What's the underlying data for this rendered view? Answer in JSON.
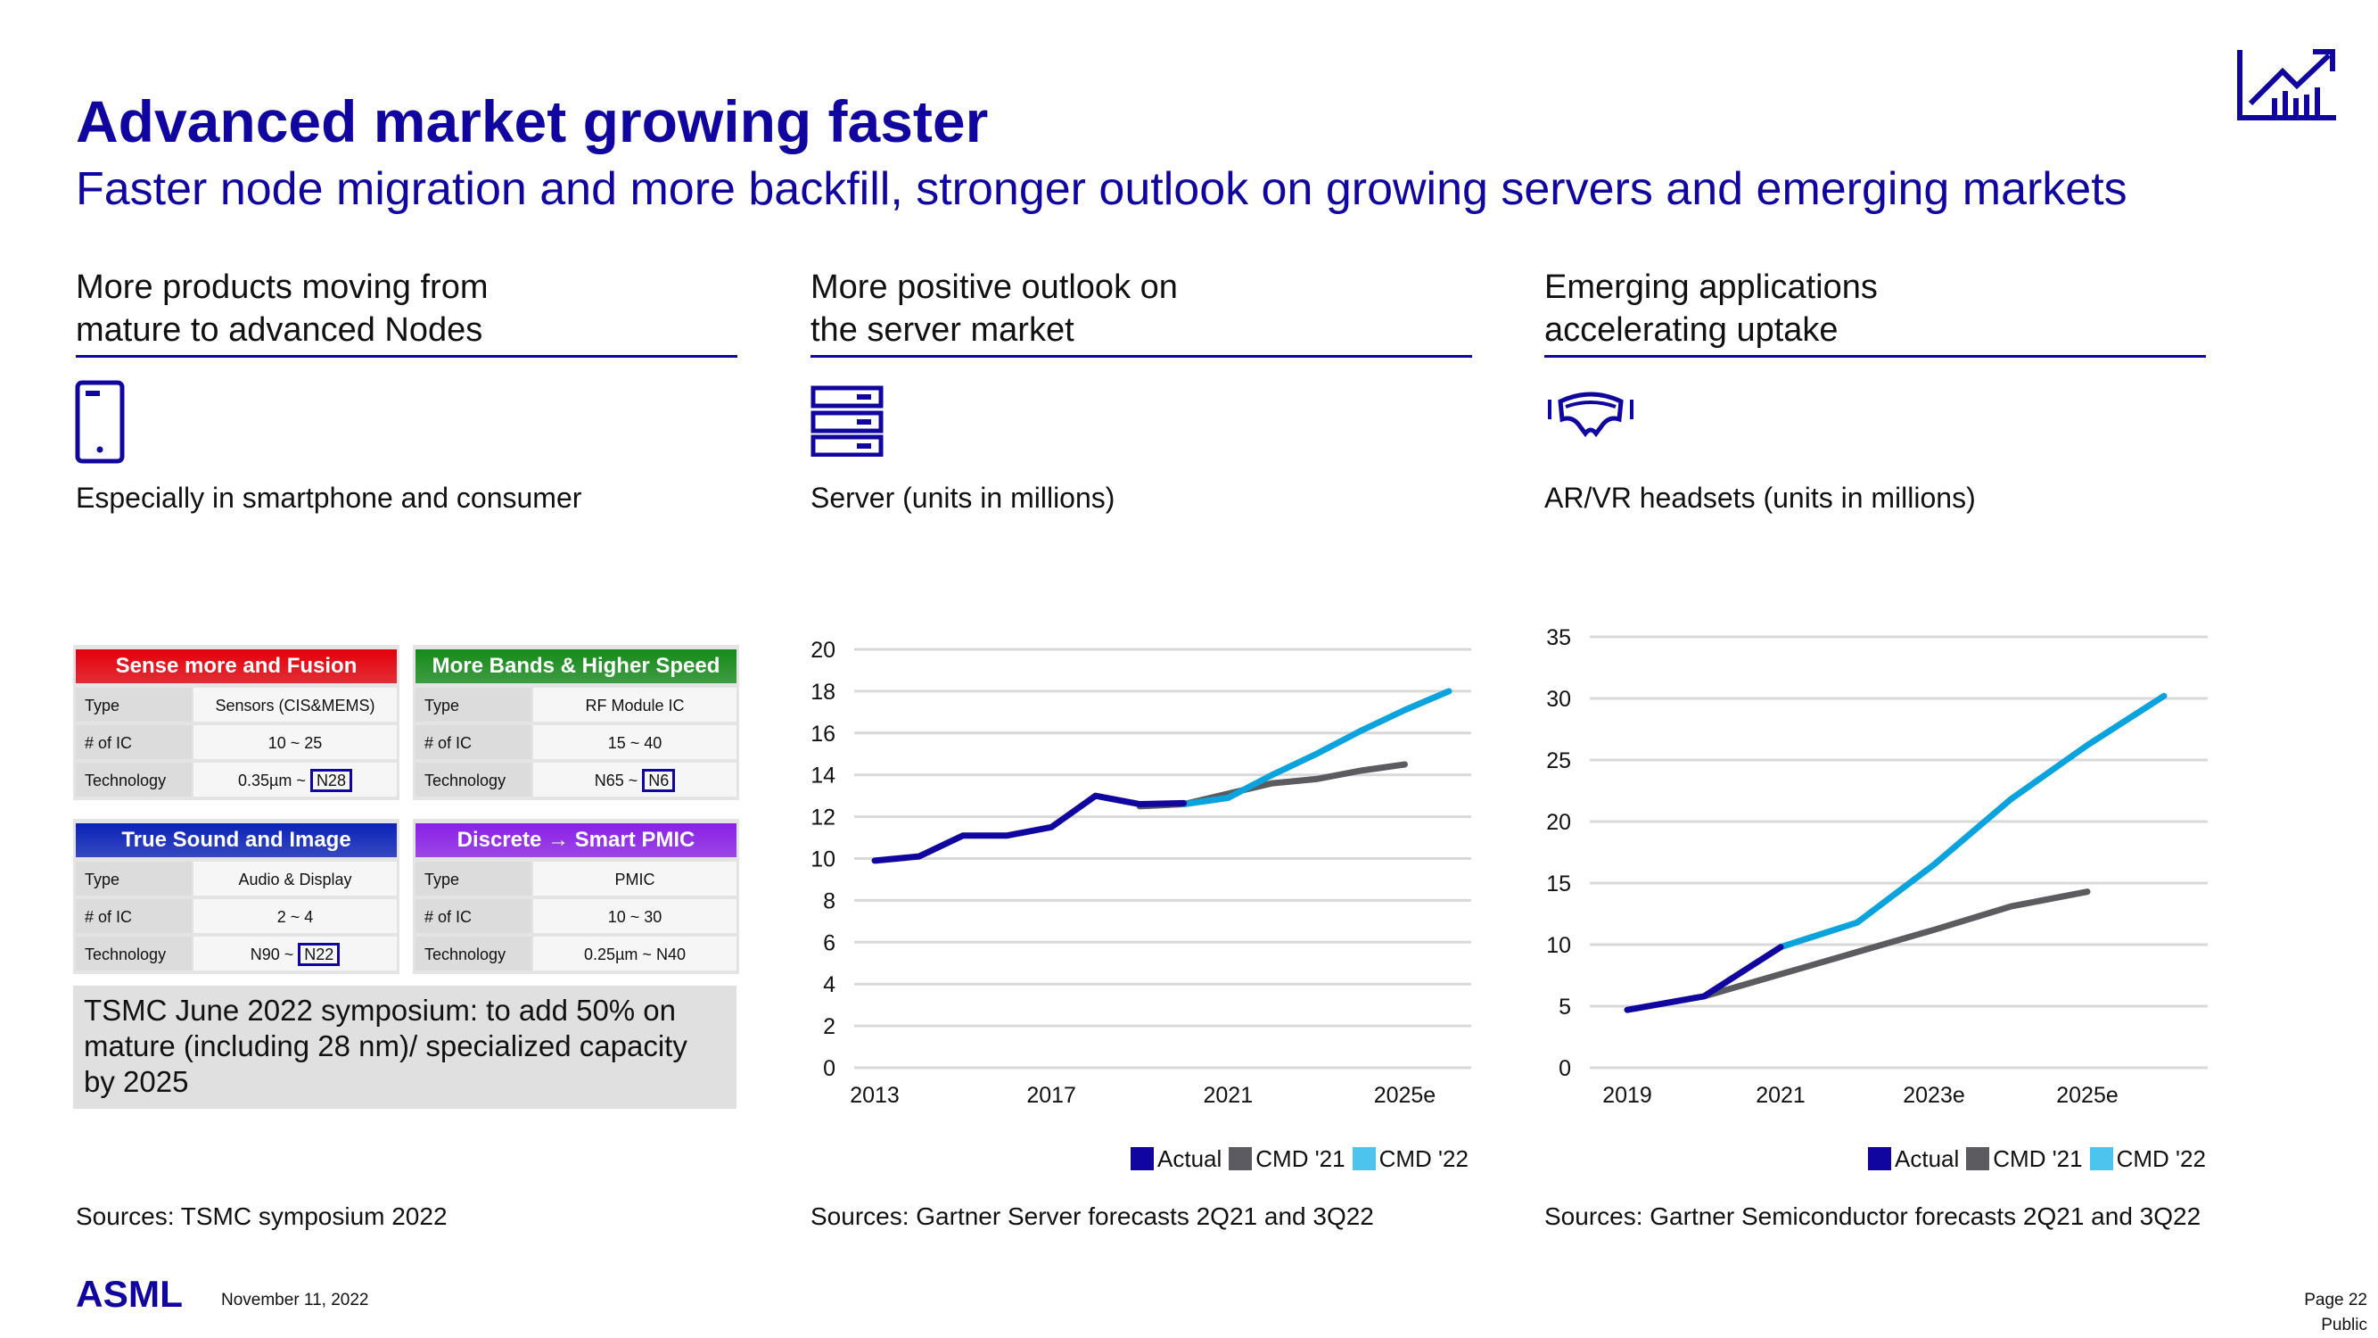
{
  "header": {
    "title": "Advanced market growing faster",
    "subtitle": "Faster node migration and more backfill, stronger outlook on growing servers and emerging markets",
    "icon": "chart-growth-icon"
  },
  "columns": [
    {
      "heading": "More products moving from\nmature to advanced Nodes",
      "icon": "smartphone-icon",
      "caption": "Especially in smartphone and consumer",
      "sources": "Sources: TSMC symposium 2022"
    },
    {
      "heading": "More positive outlook on\nthe server market",
      "icon": "server-icon",
      "caption": "Server (units in millions)",
      "sources": "Sources: Gartner Server forecasts 2Q21 and 3Q22"
    },
    {
      "heading": "Emerging applications\naccelerating uptake",
      "icon": "vr-headset-icon",
      "caption": "AR/VR headsets (units in millions)",
      "sources": "Sources: Gartner Semiconductor forecasts 2Q21 and 3Q22"
    }
  ],
  "cards": [
    {
      "title": "Sense more and Fusion",
      "color": "#e3000b",
      "rows": [
        [
          "Type",
          "Sensors (CIS&MEMS)"
        ],
        [
          "# of IC",
          "10 ~ 25"
        ],
        [
          "Technology",
          "0.35µm ~ ",
          "N28"
        ]
      ]
    },
    {
      "title": "More Bands & Higher Speed",
      "color": "#168a1a",
      "rows": [
        [
          "Type",
          "RF Module IC"
        ],
        [
          "# of IC",
          "15 ~ 40"
        ],
        [
          "Technology",
          "N65 ~ ",
          "N6"
        ]
      ]
    },
    {
      "title": "True Sound and Image",
      "color": "#0a22b8",
      "rows": [
        [
          "Type",
          "Audio & Display"
        ],
        [
          "# of IC",
          "2 ~ 4"
        ],
        [
          "Technology",
          "N90 ~ ",
          "N22"
        ]
      ]
    },
    {
      "title": "Discrete → Smart PMIC",
      "color": "#8a1fe6",
      "rows": [
        [
          "Type",
          "PMIC"
        ],
        [
          "# of IC",
          "10 ~ 30"
        ],
        [
          "Technology",
          "0.25µm ~ N40"
        ]
      ]
    }
  ],
  "note": "TSMC June 2022 symposium: to add 50% on mature (including 28 nm)/ specialized capacity by 2025",
  "chart_data": [
    {
      "type": "line",
      "title": "Server (units in millions)",
      "ylim": [
        0,
        20
      ],
      "yticks": [
        0,
        2,
        4,
        6,
        8,
        10,
        12,
        14,
        16,
        18,
        20
      ],
      "xlim": [
        2013,
        2026
      ],
      "xticks": [
        {
          "x": 2013,
          "label": "2013"
        },
        {
          "x": 2017,
          "label": "2017"
        },
        {
          "x": 2021,
          "label": "2021"
        },
        {
          "x": 2025,
          "label": "2025e"
        }
      ],
      "grid": true,
      "legend": "bottom-right",
      "series": [
        {
          "name": "Actual",
          "color": "#10069f",
          "x": [
            2013,
            2014,
            2015,
            2016,
            2017,
            2018,
            2019,
            2020
          ],
          "y": [
            9.9,
            10.1,
            11.1,
            11.1,
            11.5,
            13.0,
            12.6,
            12.65
          ]
        },
        {
          "name": "CMD '21",
          "color": "#5b5b60",
          "x": [
            2019,
            2020,
            2021,
            2022,
            2023,
            2024,
            2025
          ],
          "y": [
            12.5,
            12.6,
            13.1,
            13.6,
            13.8,
            14.2,
            14.5
          ]
        },
        {
          "name": "CMD '22",
          "color": "#0aa3de",
          "x": [
            2020,
            2021,
            2022,
            2023,
            2024,
            2025,
            2026
          ],
          "y": [
            12.6,
            12.9,
            14.0,
            15.0,
            16.1,
            17.1,
            18.0
          ]
        }
      ]
    },
    {
      "type": "line",
      "title": "AR/VR headsets (units in millions)",
      "ylim": [
        0,
        35
      ],
      "yticks": [
        0,
        5,
        10,
        15,
        20,
        25,
        30,
        35
      ],
      "xlim": [
        2019,
        2026
      ],
      "xticks": [
        {
          "x": 2019,
          "label": "2019"
        },
        {
          "x": 2021,
          "label": "2021"
        },
        {
          "x": 2023,
          "label": "2023e"
        },
        {
          "x": 2025,
          "label": "2025e"
        }
      ],
      "grid": true,
      "legend": "bottom-right",
      "series": [
        {
          "name": "Actual",
          "color": "#10069f",
          "x": [
            2019,
            2020,
            2021
          ],
          "y": [
            4.7,
            5.8,
            9.8
          ]
        },
        {
          "name": "CMD '21",
          "color": "#5b5b60",
          "x": [
            2020,
            2021,
            2022,
            2023,
            2024,
            2025
          ],
          "y": [
            5.8,
            7.6,
            9.4,
            11.2,
            13.1,
            14.3
          ]
        },
        {
          "name": "CMD '22",
          "color": "#0aa3de",
          "x": [
            2021,
            2022,
            2023,
            2024,
            2025,
            2026
          ],
          "y": [
            9.8,
            11.8,
            16.5,
            21.8,
            26.2,
            30.2
          ]
        }
      ]
    }
  ],
  "legend_labels": {
    "actual": "Actual",
    "cmd21": "CMD '21",
    "cmd22": "CMD '22"
  },
  "footer": {
    "logo": "ASML",
    "date": "November 11, 2022",
    "page": "Page 22",
    "classification": "Public"
  },
  "colors": {
    "brand": "#10069f"
  }
}
